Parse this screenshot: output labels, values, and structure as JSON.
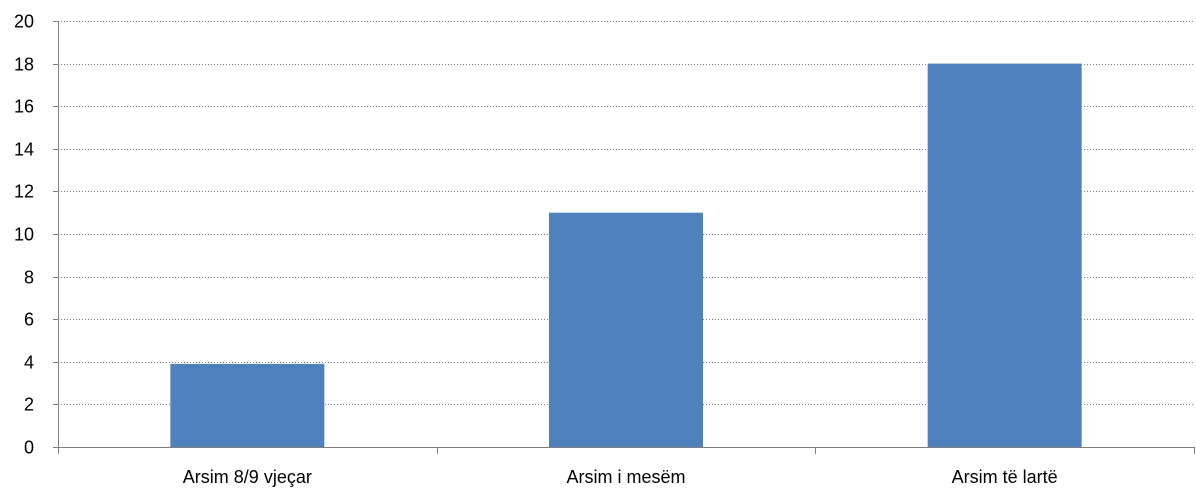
{
  "chart_data": {
    "type": "bar",
    "title": "",
    "xlabel": "",
    "ylabel": "",
    "categories": [
      "Arsim 8/9 vjeçar",
      "Arsim i mesëm",
      "Arsim të lartë"
    ],
    "series": [
      {
        "values": [
          3.9,
          11.0,
          18.0
        ]
      }
    ],
    "ylim": [
      0,
      20
    ],
    "yticks": [
      0,
      2,
      4,
      6,
      8,
      10,
      12,
      14,
      16,
      18,
      20
    ],
    "grid": true,
    "grid_style": "dotted",
    "legend": "none",
    "colors": {
      "bar": "#4F81BD",
      "grid": "#7F7F7F",
      "axis": "#7F7F7F"
    }
  }
}
